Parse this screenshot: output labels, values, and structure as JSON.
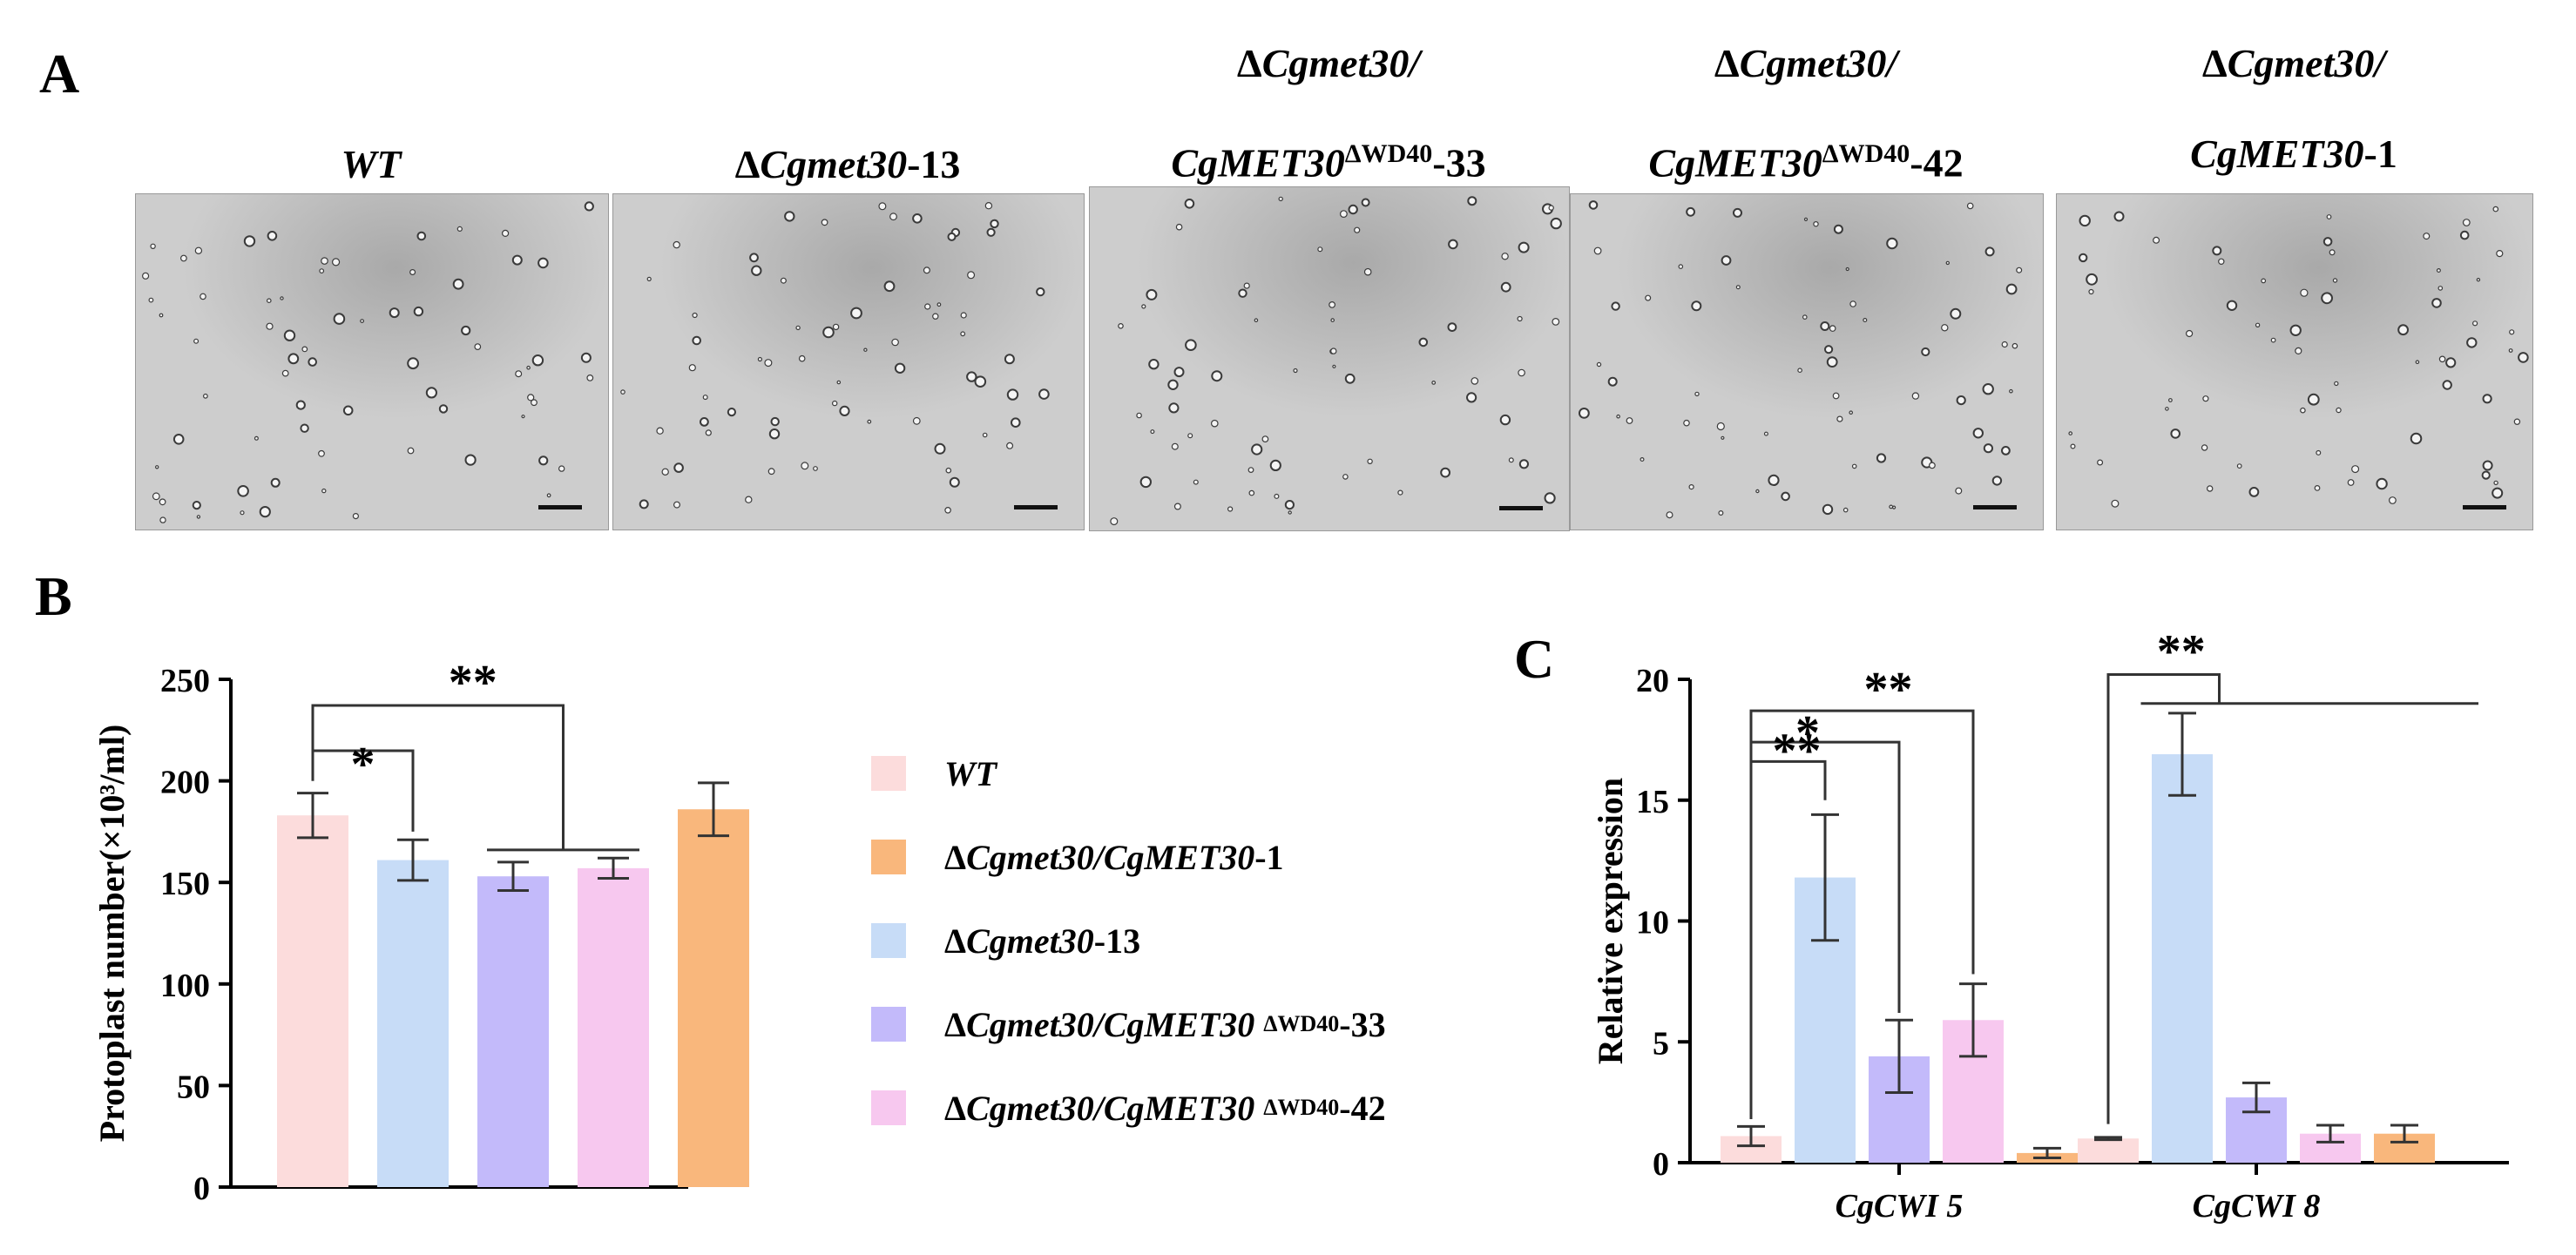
{
  "panel_labels": {
    "a": "A",
    "b": "B",
    "c": "C"
  },
  "colors": {
    "wt": "#fcdcdc",
    "complement": "#f9b77c",
    "mutant": "#c7dcf7",
    "wd40_33": "#c3bafa",
    "wd40_42": "#f7c8ef"
  },
  "micrographs": [
    {
      "line1": "",
      "line2": "WT",
      "sup": "",
      "tail": ""
    },
    {
      "line1": "",
      "line2": "ΔCgmet30-13",
      "sup": "",
      "tail": ""
    },
    {
      "line1": "ΔCgmet30/",
      "line2": "CgMET30",
      "sup": "ΔWD40",
      "tail": "-33"
    },
    {
      "line1": "ΔCgmet30/",
      "line2": "CgMET30",
      "sup": "ΔWD40",
      "tail": "-42"
    },
    {
      "line1": "ΔCgmet30/",
      "line2": "CgMET30-1",
      "sup": "",
      "tail": ""
    }
  ],
  "legend": [
    {
      "key": "wt",
      "label": "WT",
      "sup": "",
      "tail": ""
    },
    {
      "key": "complement",
      "label": "ΔCgmet30/CgMET30-1",
      "sup": "",
      "tail": ""
    },
    {
      "key": "mutant",
      "label": "ΔCgmet30-13",
      "sup": "",
      "tail": ""
    },
    {
      "key": "wd40_33",
      "label": "ΔCgmet30/CgMET30",
      "sup": "ΔWD40",
      "tail": "-33"
    },
    {
      "key": "wd40_42",
      "label": "ΔCgmet30/CgMET30",
      "sup": "ΔWD40",
      "tail": "-42"
    }
  ],
  "chart_data": [
    {
      "panel": "B",
      "type": "bar",
      "ylabel": "Protoplast number(×10³/ml)",
      "ylim": [
        0,
        250
      ],
      "yticks": [
        "0",
        "50",
        "100",
        "150",
        "200",
        "250"
      ],
      "bars": [
        {
          "key": "wt",
          "value": 183,
          "error": 11
        },
        {
          "key": "mutant",
          "value": 161,
          "error": 10
        },
        {
          "key": "wd40_33",
          "value": 153,
          "error": 7
        },
        {
          "key": "wd40_42",
          "value": 157,
          "error": 5
        },
        {
          "key": "complement",
          "value": 186,
          "error": 13
        }
      ],
      "significance": [
        "*",
        "**"
      ]
    },
    {
      "panel": "C",
      "type": "bar",
      "ylabel": "Relative expression",
      "ylim": [
        0,
        20
      ],
      "yticks": [
        "0",
        "5",
        "10",
        "15",
        "20"
      ],
      "categories": [
        "CgCWI 5",
        "CgCWI 8"
      ],
      "series": [
        {
          "key": "wt",
          "values": [
            1.1,
            1.0
          ],
          "errors": [
            0.4,
            0.05
          ]
        },
        {
          "key": "mutant",
          "values": [
            11.8,
            16.9
          ],
          "errors": [
            2.6,
            1.7
          ]
        },
        {
          "key": "wd40_33",
          "values": [
            4.4,
            2.7
          ],
          "errors": [
            1.5,
            0.6
          ]
        },
        {
          "key": "wd40_42",
          "values": [
            5.9,
            1.2
          ],
          "errors": [
            1.5,
            0.35
          ]
        },
        {
          "key": "complement",
          "values": [
            0.4,
            1.2
          ],
          "errors": [
            0.2,
            0.35
          ]
        }
      ],
      "significance": [
        "**",
        "*",
        "**",
        "**"
      ]
    }
  ]
}
